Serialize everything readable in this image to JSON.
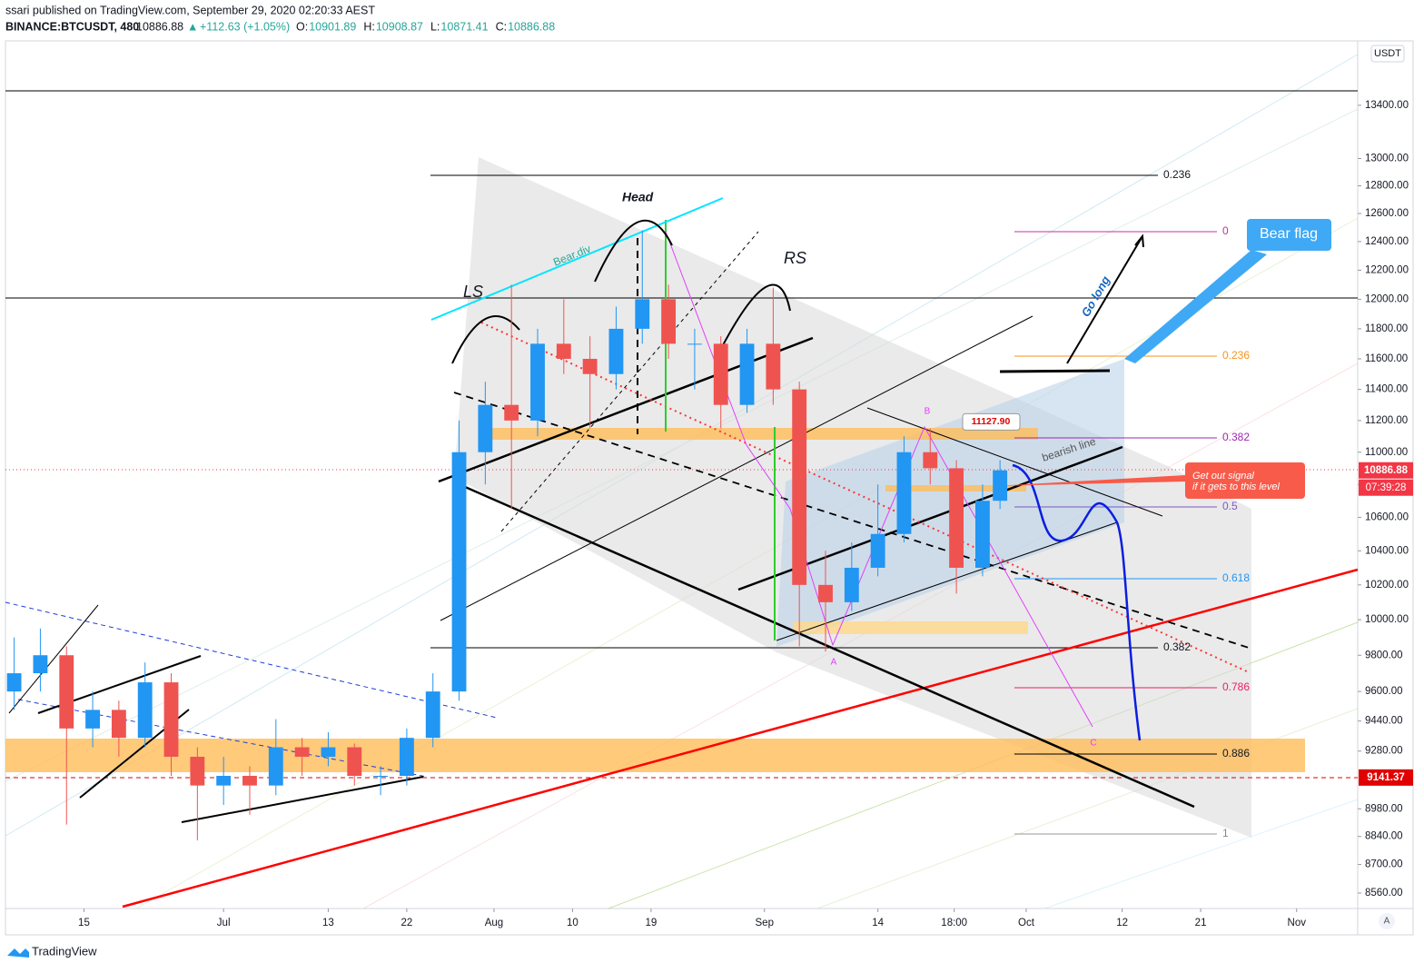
{
  "header": {
    "line1": "ssari published on TradingView.com, September 29, 2020 02:20:33 AEST",
    "symbol": "BINANCE:BTCUSDT, 480",
    "price": "10886.88",
    "change": "+112.63 (+1.05%)",
    "ohlc": [
      {
        "label": "O:",
        "value": "10901.89"
      },
      {
        "label": "H:",
        "value": "10908.87"
      },
      {
        "label": "L:",
        "value": "10871.41"
      },
      {
        "label": "C:",
        "value": "10886.88"
      }
    ]
  },
  "chart_data": {
    "type": "candlestick",
    "log_scale": true,
    "grid": false,
    "currency": "USDT",
    "up_color": "#2196f3",
    "down_color": "#ef5350",
    "x": [
      "Jun 7",
      "Jun 10",
      "Jun 13",
      "Jun 16",
      "Jun 19",
      "Jun 22",
      "Jun 25",
      "Jun 28",
      "Jul 1",
      "Jul 4",
      "Jul 7",
      "Jul 10",
      "Jul 13",
      "Jul 16",
      "Jul 19",
      "Jul 22",
      "Jul 25",
      "Jul 28",
      "Jul 31",
      "Aug 3",
      "Aug 6",
      "Aug 9",
      "Aug 12",
      "Aug 15",
      "Aug 18",
      "Aug 21",
      "Aug 24",
      "Aug 27",
      "Aug 30",
      "Sep 2",
      "Sep 5",
      "Sep 8",
      "Sep 11",
      "Sep 14",
      "Sep 17",
      "Sep 20",
      "Sep 23",
      "Sep 26",
      "Sep 28"
    ],
    "open": [
      9600,
      9700,
      9800,
      9400,
      9500,
      9350,
      9650,
      9250,
      9100,
      9150,
      9100,
      9300,
      9250,
      9300,
      9150,
      9150,
      9350,
      9600,
      11000,
      11300,
      11200,
      11700,
      11600,
      11500,
      11800,
      12000,
      11700,
      11700,
      11300,
      11700,
      11400,
      10200,
      10100,
      10300,
      10500,
      11000,
      10900,
      10300,
      10700
    ],
    "high": [
      9900,
      9950,
      9850,
      9600,
      9550,
      9760,
      9700,
      9300,
      9250,
      9200,
      9450,
      9350,
      9380,
      9320,
      9200,
      9400,
      9700,
      11200,
      11450,
      12100,
      11800,
      12000,
      11750,
      11950,
      12480,
      12100,
      11800,
      11750,
      11800,
      12080,
      11450,
      10400,
      10450,
      10800,
      11100,
      11150,
      10950,
      10800,
      10950
    ],
    "low": [
      9500,
      9600,
      8900,
      9300,
      9250,
      9300,
      9150,
      8820,
      9000,
      8950,
      9050,
      9150,
      9200,
      9100,
      9050,
      9100,
      9300,
      9550,
      10800,
      10650,
      11100,
      11500,
      11150,
      11400,
      11700,
      11600,
      11400,
      11150,
      11250,
      11300,
      9850,
      9820,
      10050,
      10250,
      10450,
      10800,
      10150,
      10250,
      10650
    ],
    "close": [
      9700,
      9800,
      9400,
      9500,
      9350,
      9650,
      9250,
      9100,
      9150,
      9100,
      9300,
      9250,
      9300,
      9150,
      9150,
      9350,
      9600,
      11000,
      11300,
      11200,
      11700,
      11600,
      11500,
      11800,
      12000,
      11700,
      11700,
      11300,
      11700,
      11400,
      10200,
      10100,
      10300,
      10500,
      11000,
      10900,
      10300,
      10700,
      10886.88
    ],
    "xlim": [
      "Jun 6",
      "Nov 8"
    ],
    "xticks": [
      {
        "value": "Jun 15",
        "label": "15"
      },
      {
        "value": "Jul 1",
        "label": "Jul"
      },
      {
        "value": "Jul 13",
        "label": "13"
      },
      {
        "value": "Jul 22",
        "label": "22"
      },
      {
        "value": "Aug 1",
        "label": "Aug"
      },
      {
        "value": "Aug 10",
        "label": "10"
      },
      {
        "value": "Aug 19",
        "label": "19"
      },
      {
        "value": "Sep 1",
        "label": "Sep"
      },
      {
        "value": "Sep 14",
        "label": "14"
      },
      {
        "value": "Sep 22 18:00",
        "label": "18:00"
      },
      {
        "value": "Oct 1",
        "label": "Oct"
      },
      {
        "value": "Oct 12",
        "label": "12"
      },
      {
        "value": "Oct 21",
        "label": "21"
      },
      {
        "value": "Nov 1",
        "label": "Nov"
      }
    ],
    "ylim": [
      8485,
      13900
    ],
    "yticks": [
      {
        "value": 13400,
        "label": "13400.00"
      },
      {
        "value": 13000,
        "label": "13000.00"
      },
      {
        "value": 12800,
        "label": "12800.00"
      },
      {
        "value": 12600,
        "label": "12600.00"
      },
      {
        "value": 12400,
        "label": "12400.00"
      },
      {
        "value": 12200,
        "label": "12200.00"
      },
      {
        "value": 12000,
        "label": "12000.00"
      },
      {
        "value": 11800,
        "label": "11800.00"
      },
      {
        "value": 11600,
        "label": "11600.00"
      },
      {
        "value": 11400,
        "label": "11400.00"
      },
      {
        "value": 11200,
        "label": "11200.00"
      },
      {
        "value": 11000,
        "label": "11000.00"
      },
      {
        "value": 10800,
        "label": "10800.00"
      },
      {
        "value": 10600,
        "label": "10600.00"
      },
      {
        "value": 10400,
        "label": "10400.00"
      },
      {
        "value": 10200,
        "label": "10200.00"
      },
      {
        "value": 10000,
        "label": "10000.00"
      },
      {
        "value": 9800,
        "label": "9800.00"
      },
      {
        "value": 9600,
        "label": "9600.00"
      },
      {
        "value": 9440,
        "label": "9440.00"
      },
      {
        "value": 9280,
        "label": "9280.00"
      },
      {
        "value": 8980,
        "label": "8980.00"
      },
      {
        "value": 8840,
        "label": "8840.00"
      },
      {
        "value": 8700,
        "label": "8700.00"
      },
      {
        "value": 8560,
        "label": "8560.00"
      }
    ],
    "price_markers": [
      {
        "value": 10886.88,
        "color": "#f23645"
      },
      {
        "value": 9141.37,
        "color": "#e00000"
      }
    ],
    "countdown": "07:39:28",
    "callout": {
      "value": 11127.9,
      "label": "11127.90"
    },
    "annotations": {
      "ls": "LS",
      "head": "Head",
      "rs": "RS",
      "bear_div": "Bear.div",
      "go_long": "Go long",
      "bear_flag": "Bear flag",
      "bearish_line": "bearish line",
      "get_out_1": "Get out signal",
      "get_out_2": "if it gets to this level",
      "wave_a": "A",
      "wave_b": "B",
      "wave_c": "C"
    },
    "fib_right": [
      "0",
      "0.236",
      "0.382",
      "0.5",
      "0.618",
      "0.786",
      "0.886",
      "1"
    ],
    "fib_left": [
      "0.236",
      "0.382"
    ]
  },
  "footer": {
    "brand": "TradingView",
    "auto": "A"
  }
}
